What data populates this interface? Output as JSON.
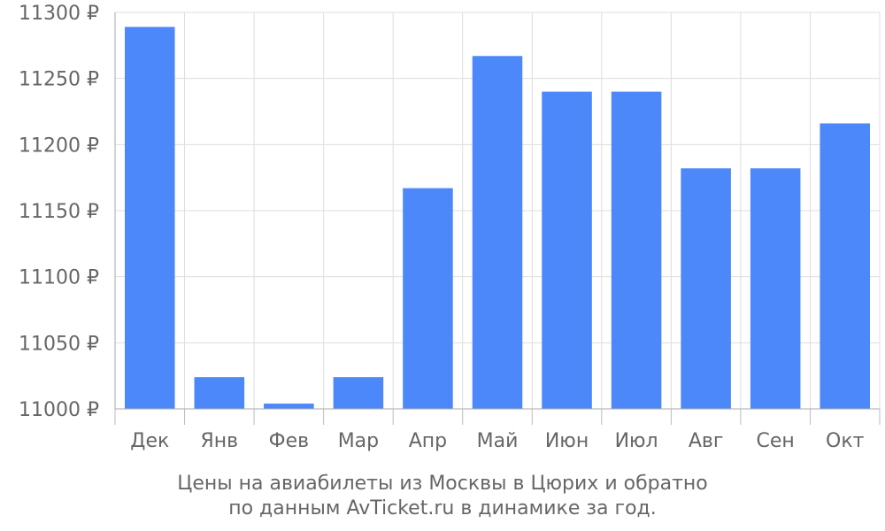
{
  "chart_data": {
    "type": "bar",
    "categories": [
      "Дек",
      "Янв",
      "Фев",
      "Мар",
      "Апр",
      "Май",
      "Июн",
      "Июл",
      "Авг",
      "Сен",
      "Окт"
    ],
    "values": [
      11289,
      11024,
      11004,
      11024,
      11167,
      11267,
      11240,
      11240,
      11182,
      11182,
      11216
    ],
    "ylim": [
      11000,
      11300
    ],
    "yticks": [
      11000,
      11050,
      11100,
      11150,
      11200,
      11250,
      11300
    ],
    "ytick_suffix": " ₽",
    "grid": true,
    "bar_color": "#4d88fa"
  },
  "caption": {
    "line1": "Цены на авиабилеты из Москвы в Цюрих и обратно",
    "line2": "по данным AvTicket.ru в динамике за год."
  }
}
